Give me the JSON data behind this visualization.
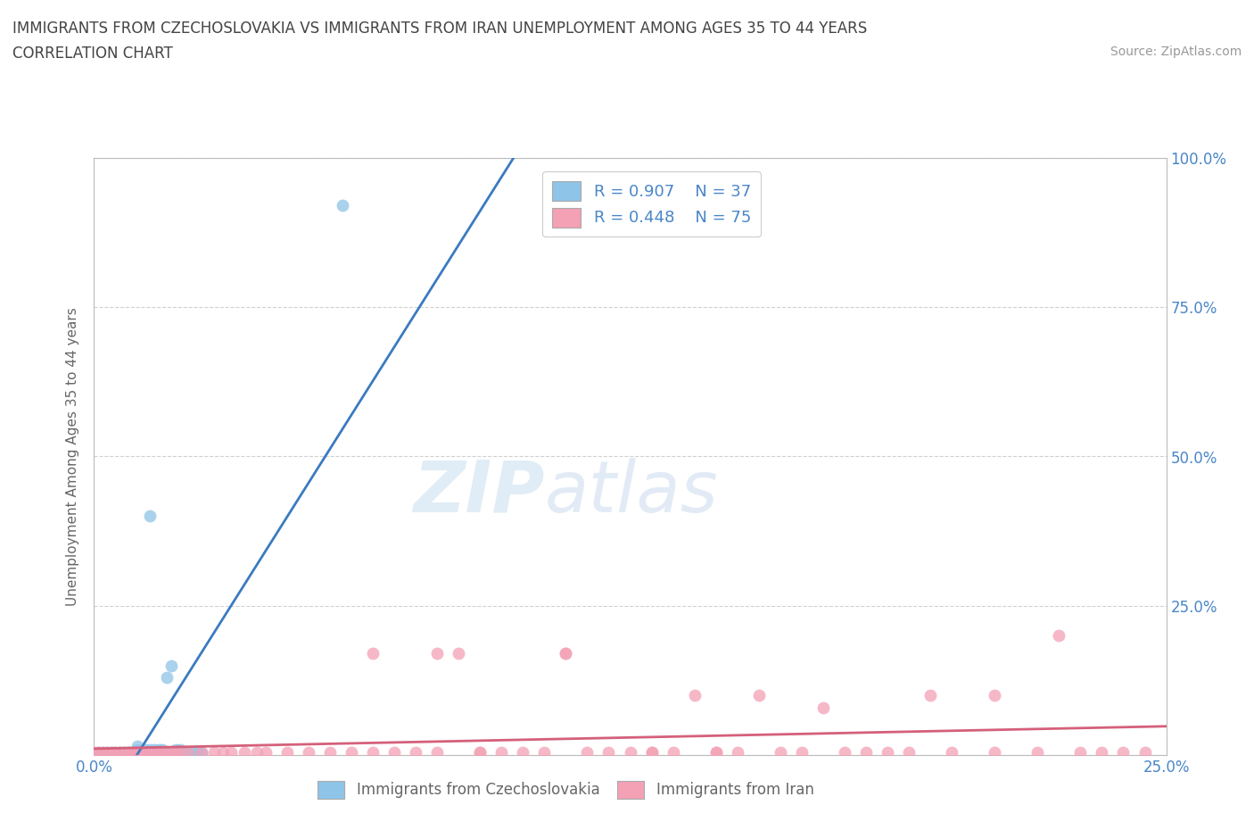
{
  "title_line1": "IMMIGRANTS FROM CZECHOSLOVAKIA VS IMMIGRANTS FROM IRAN UNEMPLOYMENT AMONG AGES 35 TO 44 YEARS",
  "title_line2": "CORRELATION CHART",
  "source_text": "Source: ZipAtlas.com",
  "ylabel": "Unemployment Among Ages 35 to 44 years",
  "xmin": 0.0,
  "xmax": 0.25,
  "ymin": 0.0,
  "ymax": 1.0,
  "color_czech": "#8ec4e8",
  "color_iran": "#f4a0b5",
  "color_czech_line": "#3a7bbf",
  "color_iran_line": "#d4607a",
  "background_color": "#ffffff",
  "grid_color": "#cccccc",
  "title_color": "#444444",
  "axis_color": "#4a86c8",
  "legend_label1": "Immigrants from Czechoslovakia",
  "legend_label2": "Immigrants from Iran",
  "czech_x": [
    0.0,
    0.001,
    0.002,
    0.003,
    0.004,
    0.005,
    0.006,
    0.007,
    0.008,
    0.009,
    0.01,
    0.01,
    0.01,
    0.011,
    0.012,
    0.012,
    0.013,
    0.013,
    0.014,
    0.015,
    0.015,
    0.016,
    0.016,
    0.017,
    0.017,
    0.018,
    0.018,
    0.019,
    0.02,
    0.02,
    0.021,
    0.022,
    0.023,
    0.024,
    0.025,
    0.013,
    0.058
  ],
  "czech_y": [
    0.0,
    0.005,
    0.005,
    0.005,
    0.005,
    0.005,
    0.005,
    0.005,
    0.005,
    0.005,
    0.005,
    0.01,
    0.015,
    0.005,
    0.005,
    0.01,
    0.005,
    0.01,
    0.01,
    0.005,
    0.01,
    0.01,
    0.005,
    0.13,
    0.005,
    0.15,
    0.005,
    0.01,
    0.005,
    0.01,
    0.005,
    0.005,
    0.005,
    0.005,
    0.005,
    0.4,
    0.92
  ],
  "iran_x": [
    0.0,
    0.001,
    0.002,
    0.003,
    0.004,
    0.005,
    0.006,
    0.007,
    0.008,
    0.009,
    0.01,
    0.011,
    0.012,
    0.013,
    0.014,
    0.015,
    0.016,
    0.017,
    0.018,
    0.019,
    0.02,
    0.022,
    0.025,
    0.028,
    0.03,
    0.032,
    0.035,
    0.038,
    0.04,
    0.045,
    0.05,
    0.055,
    0.06,
    0.065,
    0.07,
    0.075,
    0.08,
    0.085,
    0.09,
    0.095,
    0.1,
    0.105,
    0.11,
    0.115,
    0.12,
    0.125,
    0.13,
    0.135,
    0.14,
    0.145,
    0.15,
    0.16,
    0.165,
    0.17,
    0.175,
    0.18,
    0.185,
    0.19,
    0.195,
    0.2,
    0.21,
    0.22,
    0.225,
    0.23,
    0.235,
    0.24,
    0.245,
    0.065,
    0.08,
    0.09,
    0.11,
    0.13,
    0.145,
    0.155,
    0.21
  ],
  "iran_y": [
    0.005,
    0.005,
    0.005,
    0.005,
    0.005,
    0.005,
    0.005,
    0.005,
    0.005,
    0.005,
    0.005,
    0.005,
    0.005,
    0.005,
    0.005,
    0.005,
    0.005,
    0.005,
    0.005,
    0.005,
    0.005,
    0.005,
    0.005,
    0.005,
    0.005,
    0.005,
    0.005,
    0.005,
    0.005,
    0.005,
    0.005,
    0.005,
    0.005,
    0.005,
    0.005,
    0.005,
    0.005,
    0.17,
    0.005,
    0.005,
    0.005,
    0.005,
    0.17,
    0.005,
    0.005,
    0.005,
    0.005,
    0.005,
    0.1,
    0.005,
    0.005,
    0.005,
    0.005,
    0.08,
    0.005,
    0.005,
    0.005,
    0.005,
    0.1,
    0.005,
    0.005,
    0.005,
    0.2,
    0.005,
    0.005,
    0.005,
    0.005,
    0.17,
    0.17,
    0.005,
    0.17,
    0.005,
    0.005,
    0.1,
    0.1
  ]
}
